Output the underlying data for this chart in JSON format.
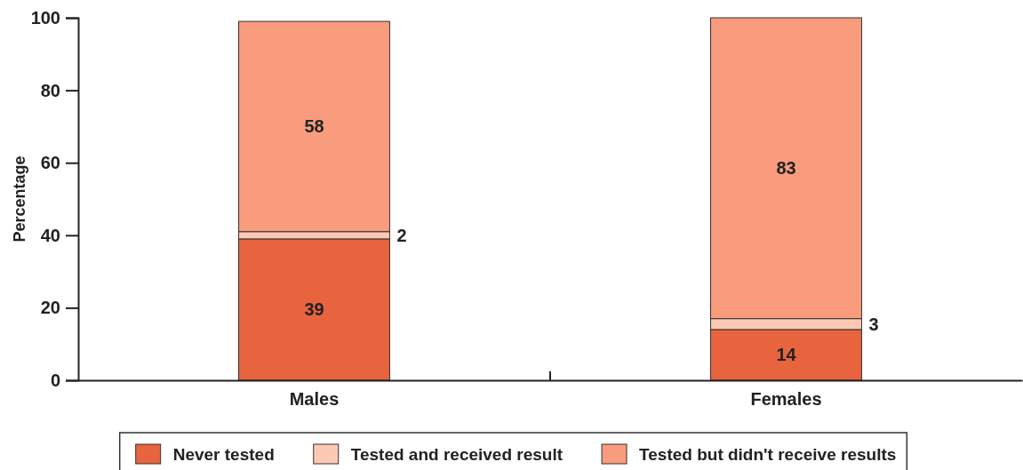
{
  "chart_data": {
    "type": "bar",
    "stacked": true,
    "ylabel": "Percentage",
    "categories": [
      "Males",
      "Females"
    ],
    "ylim": [
      0,
      100
    ],
    "yticks": [
      0,
      20,
      40,
      60,
      80,
      100
    ],
    "grid": false,
    "legend": "bottom",
    "data_labels": true,
    "series": [
      {
        "name": "Never tested",
        "color": "#e8643e",
        "values": [
          39,
          14
        ]
      },
      {
        "name": "Tested and received result",
        "color": "#fcc9b5",
        "values": [
          2,
          3
        ]
      },
      {
        "name": "Tested but didn't receive results",
        "color": "#f99b7d",
        "values": [
          58,
          83
        ]
      }
    ]
  }
}
